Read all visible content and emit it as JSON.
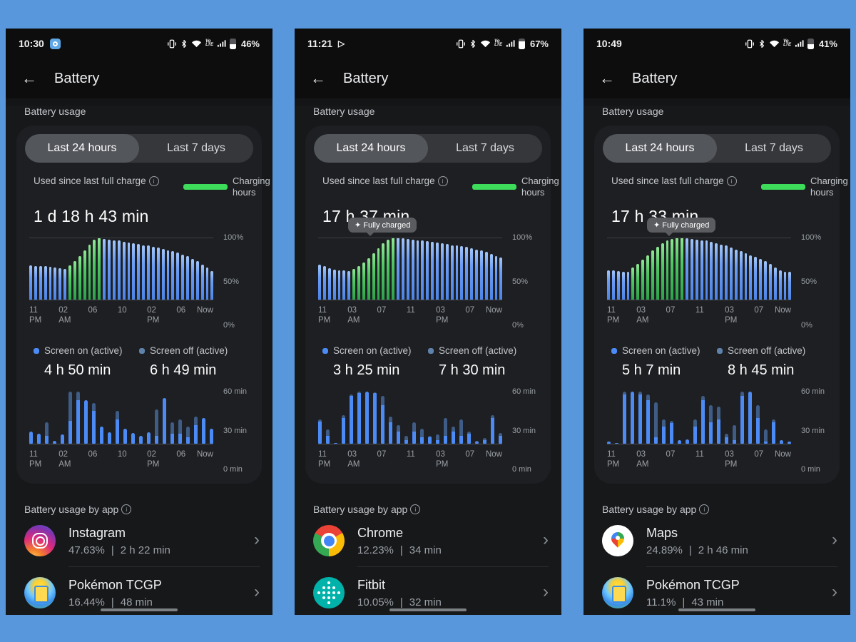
{
  "separator": "|",
  "phones": [
    {
      "status": {
        "time": "10:30",
        "notif": "chrome",
        "battery_pct": "46%",
        "battery_fill": 0.46,
        "icons": [
          "vibrate-icon",
          "bluetooth-icon",
          "wifi-icon",
          "volte-icon",
          "signal-icon",
          "battery-icon"
        ]
      },
      "header": {
        "back": "←",
        "title": "Battery"
      },
      "section_label": "Battery usage",
      "tabs": {
        "selected": "Last 24 hours",
        "other": "Last 7 days"
      },
      "usage": {
        "label": "Used since last full charge",
        "legend": "Charging hours",
        "value": "1 d 18 h 43 min"
      },
      "tooltip": null,
      "battery_chart": {
        "type": "bar",
        "ylim": [
          0,
          100
        ],
        "y_ticks": [
          "100%",
          "50%",
          "0%"
        ],
        "x_ticks": [
          [
            "11",
            "PM"
          ],
          [
            "02",
            "AM"
          ],
          [
            "06",
            ""
          ],
          [
            "10",
            ""
          ],
          [
            "02",
            "PM"
          ],
          [
            "06",
            ""
          ],
          [
            "Now",
            ""
          ]
        ],
        "bars": [
          [
            56,
            "b"
          ],
          [
            55,
            "b"
          ],
          [
            54,
            "b"
          ],
          [
            54,
            "b"
          ],
          [
            53,
            "b"
          ],
          [
            52,
            "b"
          ],
          [
            51,
            "b"
          ],
          [
            50,
            "b"
          ],
          [
            56,
            "g"
          ],
          [
            63,
            "g"
          ],
          [
            71,
            "g"
          ],
          [
            80,
            "g"
          ],
          [
            89,
            "g"
          ],
          [
            97,
            "g"
          ],
          [
            100,
            "g"
          ],
          [
            98,
            "b"
          ],
          [
            97,
            "b"
          ],
          [
            96,
            "b"
          ],
          [
            95,
            "b"
          ],
          [
            93,
            "b"
          ],
          [
            92,
            "b"
          ],
          [
            91,
            "b"
          ],
          [
            90,
            "b"
          ],
          [
            88,
            "b"
          ],
          [
            87,
            "b"
          ],
          [
            85,
            "b"
          ],
          [
            84,
            "b"
          ],
          [
            82,
            "b"
          ],
          [
            80,
            "b"
          ],
          [
            78,
            "b"
          ],
          [
            76,
            "b"
          ],
          [
            73,
            "b"
          ],
          [
            70,
            "b"
          ],
          [
            66,
            "b"
          ],
          [
            62,
            "b"
          ],
          [
            57,
            "b"
          ],
          [
            52,
            "b"
          ],
          [
            47,
            "b"
          ]
        ]
      },
      "screen": {
        "on_label": "Screen on (active)",
        "on_value": "4 h 50 min",
        "off_label": "Screen off (active)",
        "off_value": "6 h 49 min"
      },
      "screen_chart": {
        "type": "bar",
        "ylim_min": [
          0,
          60
        ],
        "y_ticks": [
          "60 min",
          "30 min",
          "0 min"
        ],
        "x_ticks": [
          [
            "11",
            "PM"
          ],
          [
            "02",
            "AM"
          ],
          [
            "06",
            ""
          ],
          [
            "10",
            ""
          ],
          [
            "02",
            "PM"
          ],
          [
            "06",
            ""
          ],
          [
            "Now",
            ""
          ]
        ],
        "bars": [
          [
            15,
            15
          ],
          [
            12,
            12
          ],
          [
            25,
            10
          ],
          [
            4,
            4
          ],
          [
            11,
            11
          ],
          [
            60,
            27
          ],
          [
            60,
            50
          ],
          [
            50,
            50
          ],
          [
            47,
            38
          ],
          [
            20,
            20
          ],
          [
            14,
            14
          ],
          [
            38,
            28
          ],
          [
            18,
            18
          ],
          [
            13,
            13
          ],
          [
            10,
            10
          ],
          [
            14,
            14
          ],
          [
            40,
            10
          ],
          [
            53,
            53
          ],
          [
            25,
            12
          ],
          [
            28,
            12
          ],
          [
            20,
            8
          ],
          [
            32,
            22
          ],
          [
            30,
            30
          ],
          [
            18,
            18
          ]
        ]
      },
      "apps_label": "Battery usage by app",
      "apps": [
        {
          "icon": "instagram",
          "name": "Instagram",
          "pct": "47.63%",
          "time": "2 h 22 min"
        },
        {
          "icon": "pokemon",
          "name": "Pokémon TCGP",
          "pct": "16.44%",
          "time": "48 min"
        }
      ]
    },
    {
      "status": {
        "time": "11:21",
        "notif": "play",
        "battery_pct": "67%",
        "battery_fill": 0.67,
        "icons": [
          "vibrate-icon",
          "bluetooth-icon",
          "wifi-icon",
          "volte-icon",
          "signal-icon",
          "battery-icon"
        ]
      },
      "header": {
        "back": "←",
        "title": "Battery"
      },
      "section_label": "Battery usage",
      "tabs": {
        "selected": "Last 24 hours",
        "other": "Last 7 days"
      },
      "usage": {
        "label": "Used since last full charge",
        "legend": "Charging hours",
        "value": "17 h 37 min"
      },
      "tooltip": "✦ Fully charged",
      "battery_chart": {
        "type": "bar",
        "ylim": [
          0,
          100
        ],
        "y_ticks": [
          "100%",
          "50%",
          "0%"
        ],
        "x_ticks": [
          [
            "11",
            "PM"
          ],
          [
            "03",
            "AM"
          ],
          [
            "07",
            ""
          ],
          [
            "11",
            ""
          ],
          [
            "03",
            "PM"
          ],
          [
            "07",
            ""
          ],
          [
            "Now",
            ""
          ]
        ],
        "bars": [
          [
            57,
            "b"
          ],
          [
            54,
            "b"
          ],
          [
            51,
            "b"
          ],
          [
            49,
            "b"
          ],
          [
            48,
            "b"
          ],
          [
            48,
            "b"
          ],
          [
            47,
            "b"
          ],
          [
            50,
            "g"
          ],
          [
            54,
            "g"
          ],
          [
            60,
            "g"
          ],
          [
            67,
            "g"
          ],
          [
            75,
            "g"
          ],
          [
            83,
            "g"
          ],
          [
            91,
            "g"
          ],
          [
            97,
            "g"
          ],
          [
            100,
            "g"
          ],
          [
            100,
            "b"
          ],
          [
            99,
            "b"
          ],
          [
            98,
            "b"
          ],
          [
            97,
            "b"
          ],
          [
            96,
            "b"
          ],
          [
            95,
            "b"
          ],
          [
            94,
            "b"
          ],
          [
            93,
            "b"
          ],
          [
            92,
            "b"
          ],
          [
            91,
            "b"
          ],
          [
            90,
            "b"
          ],
          [
            88,
            "b"
          ],
          [
            87,
            "b"
          ],
          [
            86,
            "b"
          ],
          [
            85,
            "b"
          ],
          [
            83,
            "b"
          ],
          [
            81,
            "b"
          ],
          [
            79,
            "b"
          ],
          [
            77,
            "b"
          ],
          [
            74,
            "b"
          ],
          [
            71,
            "b"
          ],
          [
            68,
            "b"
          ]
        ]
      },
      "screen": {
        "on_label": "Screen on (active)",
        "on_value": "3 h 25 min",
        "off_label": "Screen off (active)",
        "off_value": "7 h 30 min"
      },
      "screen_chart": {
        "type": "bar",
        "ylim_min": [
          0,
          60
        ],
        "y_ticks": [
          "60 min",
          "30 min",
          "0 min"
        ],
        "x_ticks": [
          [
            "11",
            "PM"
          ],
          [
            "03",
            "AM"
          ],
          [
            "07",
            ""
          ],
          [
            "11",
            ""
          ],
          [
            "03",
            "PM"
          ],
          [
            "07",
            ""
          ],
          [
            "Now",
            ""
          ]
        ],
        "bars": [
          [
            28,
            26
          ],
          [
            17,
            10
          ],
          [
            2,
            2
          ],
          [
            33,
            30
          ],
          [
            57,
            55
          ],
          [
            60,
            58
          ],
          [
            60,
            60
          ],
          [
            59,
            58
          ],
          [
            55,
            45
          ],
          [
            32,
            25
          ],
          [
            22,
            15
          ],
          [
            10,
            5
          ],
          [
            25,
            15
          ],
          [
            18,
            8
          ],
          [
            10,
            8
          ],
          [
            11,
            5
          ],
          [
            30,
            10
          ],
          [
            20,
            15
          ],
          [
            28,
            10
          ],
          [
            15,
            12
          ],
          [
            4,
            3
          ],
          [
            7,
            5
          ],
          [
            33,
            30
          ],
          [
            13,
            10
          ]
        ]
      },
      "apps_label": "Battery usage by app",
      "apps": [
        {
          "icon": "chrome",
          "name": "Chrome",
          "pct": "12.23%",
          "time": "34 min"
        },
        {
          "icon": "fitbit",
          "name": "Fitbit",
          "pct": "10.05%",
          "time": "32 min"
        }
      ]
    },
    {
      "status": {
        "time": "10:49",
        "notif": "none",
        "battery_pct": "41%",
        "battery_fill": 0.41,
        "icons": [
          "vibrate-icon",
          "bluetooth-icon",
          "wifi-icon",
          "volte-icon",
          "signal-icon",
          "battery-icon"
        ]
      },
      "header": {
        "back": "←",
        "title": "Battery"
      },
      "section_label": "Battery usage",
      "tabs": {
        "selected": "Last 24 hours",
        "other": "Last 7 days"
      },
      "usage": {
        "label": "Used since last full charge",
        "legend": "Charging hours",
        "value": "17 h 33 min"
      },
      "tooltip": "✦ Fully charged",
      "battery_chart": {
        "type": "bar",
        "ylim": [
          0,
          100
        ],
        "y_ticks": [
          "100%",
          "50%",
          "0%"
        ],
        "x_ticks": [
          [
            "11",
            "PM"
          ],
          [
            "03",
            "AM"
          ],
          [
            "07",
            ""
          ],
          [
            "11",
            ""
          ],
          [
            "03",
            "PM"
          ],
          [
            "07",
            ""
          ],
          [
            "Now",
            ""
          ]
        ],
        "bars": [
          [
            48,
            "b"
          ],
          [
            48,
            "b"
          ],
          [
            47,
            "b"
          ],
          [
            46,
            "b"
          ],
          [
            45,
            "b"
          ],
          [
            52,
            "g"
          ],
          [
            58,
            "g"
          ],
          [
            65,
            "g"
          ],
          [
            72,
            "g"
          ],
          [
            79,
            "g"
          ],
          [
            85,
            "g"
          ],
          [
            91,
            "g"
          ],
          [
            95,
            "g"
          ],
          [
            98,
            "g"
          ],
          [
            100,
            "g"
          ],
          [
            100,
            "g"
          ],
          [
            99,
            "b"
          ],
          [
            98,
            "b"
          ],
          [
            97,
            "b"
          ],
          [
            96,
            "b"
          ],
          [
            95,
            "b"
          ],
          [
            93,
            "b"
          ],
          [
            91,
            "b"
          ],
          [
            89,
            "b"
          ],
          [
            87,
            "b"
          ],
          [
            84,
            "b"
          ],
          [
            81,
            "b"
          ],
          [
            78,
            "b"
          ],
          [
            75,
            "b"
          ],
          [
            72,
            "b"
          ],
          [
            69,
            "b"
          ],
          [
            66,
            "b"
          ],
          [
            63,
            "b"
          ],
          [
            58,
            "b"
          ],
          [
            52,
            "b"
          ],
          [
            48,
            "b"
          ],
          [
            46,
            "b"
          ],
          [
            45,
            "b"
          ]
        ]
      },
      "screen": {
        "on_label": "Screen on (active)",
        "on_value": "5 h 7 min",
        "off_label": "Screen off (active)",
        "off_value": "8 h 45 min"
      },
      "screen_chart": {
        "type": "bar",
        "ylim_min": [
          0,
          60
        ],
        "y_ticks": [
          "60 min",
          "30 min",
          "0 min"
        ],
        "x_ticks": [
          [
            "11",
            "PM"
          ],
          [
            "03",
            "AM"
          ],
          [
            "07",
            ""
          ],
          [
            "11",
            ""
          ],
          [
            "03",
            "PM"
          ],
          [
            "07",
            ""
          ],
          [
            "Now",
            ""
          ]
        ],
        "bars": [
          [
            3,
            3
          ],
          [
            2,
            2
          ],
          [
            60,
            57
          ],
          [
            60,
            60
          ],
          [
            60,
            57
          ],
          [
            57,
            50
          ],
          [
            48,
            8
          ],
          [
            28,
            20
          ],
          [
            27,
            24
          ],
          [
            5,
            5
          ],
          [
            6,
            6
          ],
          [
            28,
            20
          ],
          [
            55,
            50
          ],
          [
            45,
            25
          ],
          [
            43,
            28
          ],
          [
            12,
            8
          ],
          [
            22,
            5
          ],
          [
            60,
            55
          ],
          [
            60,
            60
          ],
          [
            45,
            30
          ],
          [
            17,
            3
          ],
          [
            28,
            25
          ],
          [
            5,
            5
          ],
          [
            3,
            3
          ]
        ]
      },
      "apps_label": "Battery usage by app",
      "apps": [
        {
          "icon": "maps",
          "name": "Maps",
          "pct": "24.89%",
          "time": "2 h 46 min"
        },
        {
          "icon": "pokemon",
          "name": "Pokémon TCGP",
          "pct": "11.1%",
          "time": "43 min"
        }
      ]
    }
  ]
}
